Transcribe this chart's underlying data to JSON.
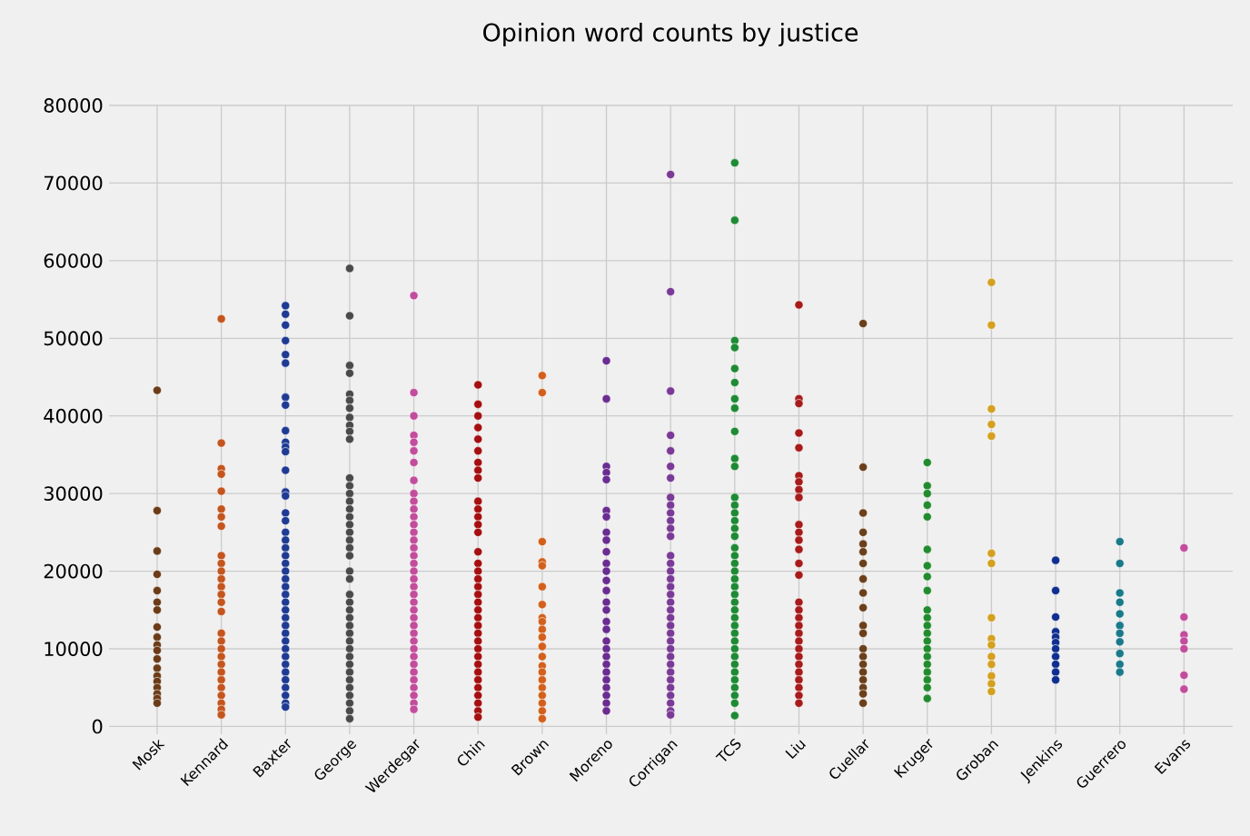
{
  "chart_data": {
    "type": "scatter",
    "title": "Opinion word counts by justice",
    "categories": [
      "Mosk",
      "Kennard",
      "Baxter",
      "George",
      "Werdegar",
      "Chin",
      "Brown",
      "Moreno",
      "Corrigan",
      "TCS",
      "Liu",
      "Cuellar",
      "Kruger",
      "Groban",
      "Jenkins",
      "Guerrero",
      "Evans"
    ],
    "ylim": [
      -1000,
      80000
    ],
    "yticks": [
      0,
      10000,
      20000,
      30000,
      40000,
      50000,
      60000,
      70000,
      80000
    ],
    "grid": true,
    "marker": "circle",
    "series": [
      {
        "color": "#6b3c17",
        "x": [
          "Mosk",
          "Mosk",
          "Mosk",
          "Mosk",
          "Mosk",
          "Mosk",
          "Mosk",
          "Mosk",
          "Mosk",
          "Mosk",
          "Mosk",
          "Mosk",
          "Mosk",
          "Mosk",
          "Mosk",
          "Mosk",
          "Mosk",
          "Mosk",
          "Mosk"
        ],
        "values": [
          43300,
          27800,
          22600,
          19600,
          17500,
          16000,
          15000,
          12800,
          11500,
          10500,
          9800,
          8700,
          7500,
          6500,
          5800,
          5000,
          4200,
          3600,
          3000
        ]
      },
      {
        "color": "#c4551e",
        "x": [
          "Kennard",
          "Kennard",
          "Kennard",
          "Kennard",
          "Kennard",
          "Kennard",
          "Kennard",
          "Kennard",
          "Kennard",
          "Kennard",
          "Kennard",
          "Kennard",
          "Kennard",
          "Kennard",
          "Kennard",
          "Kennard",
          "Kennard",
          "Kennard",
          "Kennard",
          "Kennard",
          "Kennard",
          "Kennard",
          "Kennard",
          "Kennard",
          "Kennard",
          "Kennard",
          "Kennard",
          "Kennard"
        ],
        "values": [
          52500,
          36500,
          33200,
          32500,
          30300,
          28000,
          27000,
          25800,
          22000,
          21000,
          20000,
          19000,
          18000,
          17000,
          16000,
          14800,
          12000,
          11000,
          10000,
          9000,
          8000,
          7000,
          6000,
          5000,
          4000,
          3000,
          2200,
          1500
        ]
      },
      {
        "color": "#1f3a93",
        "x": [
          "Baxter",
          "Baxter",
          "Baxter",
          "Baxter",
          "Baxter",
          "Baxter",
          "Baxter",
          "Baxter",
          "Baxter",
          "Baxter",
          "Baxter",
          "Baxter",
          "Baxter",
          "Baxter",
          "Baxter",
          "Baxter",
          "Baxter",
          "Baxter",
          "Baxter",
          "Baxter",
          "Baxter",
          "Baxter",
          "Baxter",
          "Baxter",
          "Baxter",
          "Baxter",
          "Baxter",
          "Baxter",
          "Baxter",
          "Baxter",
          "Baxter",
          "Baxter",
          "Baxter",
          "Baxter",
          "Baxter",
          "Baxter",
          "Baxter",
          "Baxter",
          "Baxter",
          "Baxter",
          "Baxter"
        ],
        "values": [
          54200,
          53100,
          51700,
          49700,
          47900,
          46800,
          42400,
          41400,
          38100,
          36600,
          36000,
          35400,
          33000,
          30200,
          29700,
          27500,
          26500,
          25000,
          24000,
          23000,
          22000,
          21000,
          20000,
          19000,
          18000,
          17000,
          16000,
          15000,
          14000,
          13000,
          12000,
          11000,
          10000,
          9000,
          8000,
          7000,
          6000,
          5000,
          4000,
          3000,
          2500
        ]
      },
      {
        "color": "#4a4a4a",
        "x": [
          "George",
          "George",
          "George",
          "George",
          "George",
          "George",
          "George",
          "George",
          "George",
          "George",
          "George",
          "George",
          "George",
          "George",
          "George",
          "George",
          "George",
          "George",
          "George",
          "George",
          "George",
          "George",
          "George",
          "George",
          "George",
          "George",
          "George",
          "George",
          "George",
          "George",
          "George",
          "George",
          "George",
          "George",
          "George",
          "George",
          "George",
          "George",
          "George",
          "George",
          "George"
        ],
        "values": [
          59000,
          52900,
          46500,
          45500,
          42800,
          42000,
          41000,
          39800,
          38800,
          38000,
          37000,
          32000,
          31000,
          30000,
          29000,
          28000,
          27000,
          26000,
          25000,
          24000,
          23000,
          22000,
          20000,
          19000,
          17000,
          16000,
          15000,
          14000,
          13000,
          12000,
          11000,
          10000,
          9000,
          8000,
          7000,
          6000,
          5000,
          4000,
          3000,
          2000,
          1000
        ]
      },
      {
        "color": "#c24d9c",
        "x": [
          "Werdegar",
          "Werdegar",
          "Werdegar",
          "Werdegar",
          "Werdegar",
          "Werdegar",
          "Werdegar",
          "Werdegar",
          "Werdegar",
          "Werdegar",
          "Werdegar",
          "Werdegar",
          "Werdegar",
          "Werdegar",
          "Werdegar",
          "Werdegar",
          "Werdegar",
          "Werdegar",
          "Werdegar",
          "Werdegar",
          "Werdegar",
          "Werdegar",
          "Werdegar",
          "Werdegar",
          "Werdegar",
          "Werdegar",
          "Werdegar",
          "Werdegar",
          "Werdegar",
          "Werdegar",
          "Werdegar",
          "Werdegar",
          "Werdegar",
          "Werdegar",
          "Werdegar",
          "Werdegar",
          "Werdegar"
        ],
        "values": [
          55500,
          43000,
          40000,
          37500,
          36600,
          35500,
          34000,
          31700,
          30000,
          29000,
          28000,
          27000,
          26000,
          25000,
          24000,
          23000,
          22000,
          21000,
          20000,
          19000,
          18000,
          17000,
          16000,
          15000,
          14000,
          13000,
          12000,
          11000,
          10000,
          9000,
          8000,
          7000,
          6000,
          5000,
          4000,
          3000,
          2200
        ]
      },
      {
        "color": "#a50f0f",
        "x": [
          "Chin",
          "Chin",
          "Chin",
          "Chin",
          "Chin",
          "Chin",
          "Chin",
          "Chin",
          "Chin",
          "Chin",
          "Chin",
          "Chin",
          "Chin",
          "Chin",
          "Chin",
          "Chin",
          "Chin",
          "Chin",
          "Chin",
          "Chin",
          "Chin",
          "Chin",
          "Chin",
          "Chin",
          "Chin",
          "Chin",
          "Chin",
          "Chin",
          "Chin",
          "Chin",
          "Chin",
          "Chin",
          "Chin",
          "Chin",
          "Chin",
          "Chin"
        ],
        "values": [
          44000,
          41500,
          40000,
          38500,
          37000,
          35500,
          34000,
          33000,
          32000,
          29000,
          28000,
          27000,
          26000,
          25000,
          22500,
          21000,
          20000,
          19000,
          18000,
          17000,
          16000,
          15000,
          14000,
          13000,
          12000,
          11000,
          10000,
          9000,
          8000,
          7000,
          6000,
          5000,
          4000,
          3000,
          2000,
          1200
        ]
      },
      {
        "color": "#d2601c",
        "x": [
          "Brown",
          "Brown",
          "Brown",
          "Brown",
          "Brown",
          "Brown",
          "Brown",
          "Brown",
          "Brown",
          "Brown",
          "Brown",
          "Brown",
          "Brown",
          "Brown",
          "Brown",
          "Brown",
          "Brown",
          "Brown",
          "Brown",
          "Brown",
          "Brown"
        ],
        "values": [
          45200,
          43000,
          23800,
          21200,
          20700,
          18000,
          15700,
          14000,
          13500,
          12500,
          11500,
          10300,
          9000,
          7800,
          7000,
          6000,
          5000,
          4000,
          3000,
          2000,
          1000
        ]
      },
      {
        "color": "#6a2c91",
        "x": [
          "Moreno",
          "Moreno",
          "Moreno",
          "Moreno",
          "Moreno",
          "Moreno",
          "Moreno",
          "Moreno",
          "Moreno",
          "Moreno",
          "Moreno",
          "Moreno",
          "Moreno",
          "Moreno",
          "Moreno",
          "Moreno",
          "Moreno",
          "Moreno",
          "Moreno",
          "Moreno",
          "Moreno",
          "Moreno",
          "Moreno",
          "Moreno",
          "Moreno",
          "Moreno",
          "Moreno",
          "Moreno"
        ],
        "values": [
          47100,
          42200,
          33500,
          32700,
          31800,
          27800,
          27000,
          25000,
          24000,
          22500,
          21000,
          20000,
          18800,
          17500,
          16000,
          15000,
          13500,
          12500,
          11000,
          10000,
          9000,
          8000,
          7000,
          6000,
          5000,
          4000,
          3000,
          2000
        ]
      },
      {
        "color": "#7b3a96",
        "x": [
          "Corrigan",
          "Corrigan",
          "Corrigan",
          "Corrigan",
          "Corrigan",
          "Corrigan",
          "Corrigan",
          "Corrigan",
          "Corrigan",
          "Corrigan",
          "Corrigan",
          "Corrigan",
          "Corrigan",
          "Corrigan",
          "Corrigan",
          "Corrigan",
          "Corrigan",
          "Corrigan",
          "Corrigan",
          "Corrigan",
          "Corrigan",
          "Corrigan",
          "Corrigan",
          "Corrigan",
          "Corrigan",
          "Corrigan",
          "Corrigan",
          "Corrigan",
          "Corrigan",
          "Corrigan",
          "Corrigan",
          "Corrigan",
          "Corrigan",
          "Corrigan",
          "Corrigan"
        ],
        "values": [
          71100,
          56000,
          43200,
          37500,
          35500,
          33500,
          32000,
          29500,
          28500,
          27500,
          26500,
          25500,
          24500,
          22000,
          21000,
          20000,
          19000,
          18000,
          17000,
          16000,
          15000,
          14000,
          13000,
          12000,
          11000,
          10000,
          9000,
          8000,
          7000,
          6000,
          5000,
          4000,
          3000,
          2000,
          1500
        ]
      },
      {
        "color": "#1e8a34",
        "x": [
          "TCS",
          "TCS",
          "TCS",
          "TCS",
          "TCS",
          "TCS",
          "TCS",
          "TCS",
          "TCS",
          "TCS",
          "TCS",
          "TCS",
          "TCS",
          "TCS",
          "TCS",
          "TCS",
          "TCS",
          "TCS",
          "TCS",
          "TCS",
          "TCS",
          "TCS",
          "TCS",
          "TCS",
          "TCS",
          "TCS",
          "TCS",
          "TCS",
          "TCS",
          "TCS",
          "TCS",
          "TCS",
          "TCS",
          "TCS",
          "TCS",
          "TCS",
          "TCS",
          "TCS",
          "TCS"
        ],
        "values": [
          72600,
          65200,
          49700,
          48800,
          46100,
          44300,
          42200,
          41000,
          38000,
          34500,
          33500,
          29500,
          28500,
          27500,
          26500,
          25500,
          24500,
          23000,
          22000,
          21000,
          20000,
          19000,
          18000,
          17000,
          16000,
          15000,
          14000,
          13000,
          12000,
          11000,
          10000,
          9000,
          8000,
          7000,
          6000,
          5000,
          4000,
          3000,
          1400
        ]
      },
      {
        "color": "#a81b1b",
        "x": [
          "Liu",
          "Liu",
          "Liu",
          "Liu",
          "Liu",
          "Liu",
          "Liu",
          "Liu",
          "Liu",
          "Liu",
          "Liu",
          "Liu",
          "Liu",
          "Liu",
          "Liu",
          "Liu",
          "Liu",
          "Liu",
          "Liu",
          "Liu",
          "Liu",
          "Liu",
          "Liu",
          "Liu",
          "Liu",
          "Liu",
          "Liu",
          "Liu",
          "Liu"
        ],
        "values": [
          54300,
          42200,
          41600,
          37800,
          35900,
          32300,
          31500,
          30500,
          29500,
          26000,
          25000,
          24000,
          22800,
          21000,
          19500,
          16000,
          15000,
          14000,
          13000,
          12000,
          11000,
          10000,
          9000,
          8000,
          7000,
          6000,
          5000,
          4000,
          3000
        ]
      },
      {
        "color": "#6b3f1a",
        "x": [
          "Cuellar",
          "Cuellar",
          "Cuellar",
          "Cuellar",
          "Cuellar",
          "Cuellar",
          "Cuellar",
          "Cuellar",
          "Cuellar",
          "Cuellar",
          "Cuellar",
          "Cuellar",
          "Cuellar",
          "Cuellar",
          "Cuellar",
          "Cuellar",
          "Cuellar",
          "Cuellar",
          "Cuellar",
          "Cuellar"
        ],
        "values": [
          51900,
          33400,
          27500,
          25000,
          23500,
          22500,
          21000,
          19000,
          17200,
          15300,
          13000,
          12000,
          10000,
          9000,
          8000,
          7000,
          6000,
          5000,
          4200,
          3000
        ]
      },
      {
        "color": "#228b2e",
        "x": [
          "Kruger",
          "Kruger",
          "Kruger",
          "Kruger",
          "Kruger",
          "Kruger",
          "Kruger",
          "Kruger",
          "Kruger",
          "Kruger",
          "Kruger",
          "Kruger",
          "Kruger",
          "Kruger",
          "Kruger",
          "Kruger",
          "Kruger",
          "Kruger",
          "Kruger",
          "Kruger",
          "Kruger"
        ],
        "values": [
          34000,
          31000,
          30000,
          28500,
          27000,
          22800,
          20700,
          19300,
          17500,
          15000,
          14000,
          13000,
          12000,
          11000,
          10000,
          9000,
          8000,
          7000,
          6000,
          5000,
          3600
        ]
      },
      {
        "color": "#d4a020",
        "x": [
          "Groban",
          "Groban",
          "Groban",
          "Groban",
          "Groban",
          "Groban",
          "Groban",
          "Groban",
          "Groban",
          "Groban",
          "Groban",
          "Groban",
          "Groban",
          "Groban",
          "Groban"
        ],
        "values": [
          57200,
          51700,
          40900,
          38900,
          37400,
          22300,
          21000,
          14000,
          11300,
          10500,
          9000,
          8000,
          6500,
          5500,
          4500
        ]
      },
      {
        "color": "#0f2e8f",
        "x": [
          "Jenkins",
          "Jenkins",
          "Jenkins",
          "Jenkins",
          "Jenkins",
          "Jenkins",
          "Jenkins",
          "Jenkins",
          "Jenkins",
          "Jenkins",
          "Jenkins"
        ],
        "values": [
          21400,
          17500,
          14100,
          12200,
          11500,
          10800,
          10000,
          9000,
          8000,
          7000,
          6000
        ]
      },
      {
        "color": "#1a7a8a",
        "x": [
          "Guerrero",
          "Guerrero",
          "Guerrero",
          "Guerrero",
          "Guerrero",
          "Guerrero",
          "Guerrero",
          "Guerrero",
          "Guerrero",
          "Guerrero",
          "Guerrero"
        ],
        "values": [
          23800,
          21000,
          17200,
          16000,
          14500,
          13000,
          12000,
          10900,
          9400,
          8000,
          7000
        ]
      },
      {
        "color": "#c24d9c",
        "x": [
          "Evans",
          "Evans",
          "Evans",
          "Evans",
          "Evans",
          "Evans",
          "Evans"
        ],
        "values": [
          23000,
          14100,
          11800,
          11000,
          10000,
          6600,
          4800
        ]
      }
    ]
  }
}
